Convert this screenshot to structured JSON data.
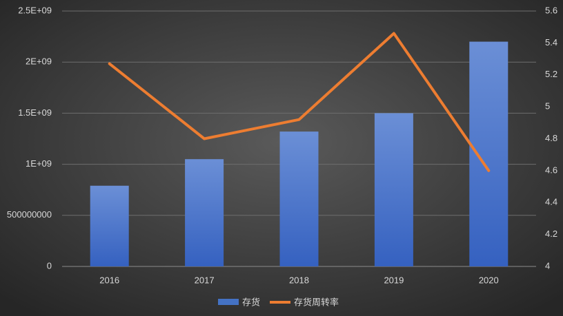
{
  "chart_data": {
    "type": "combo",
    "categories": [
      "2016",
      "2017",
      "2018",
      "2019",
      "2020"
    ],
    "series": [
      {
        "name": "存货",
        "type": "bar",
        "color": "#4472c4",
        "values": [
          790000000,
          1050000000,
          1320000000,
          1500000000,
          2200000000
        ]
      },
      {
        "name": "存货周转率",
        "type": "line",
        "axis": "y2",
        "color": "#ed7d31",
        "values": [
          5.27,
          4.8,
          4.92,
          5.46,
          4.6
        ]
      }
    ],
    "ylim": [
      0,
      2500000000
    ],
    "yticks": [
      0,
      500000000,
      {
        "value": 1000000000,
        "label": "1E+09"
      },
      {
        "value": 1500000000,
        "label": "1.5E+09"
      },
      {
        "value": 2000000000,
        "label": "2E+09"
      },
      {
        "value": 2500000000,
        "label": "2.5E+09"
      }
    ],
    "y2lim": [
      4,
      5.6
    ],
    "y2ticks": [
      4,
      4.2,
      4.4,
      4.6,
      4.8,
      5,
      5.2,
      5.4,
      5.6
    ],
    "grid": true,
    "legend": "bottom"
  }
}
